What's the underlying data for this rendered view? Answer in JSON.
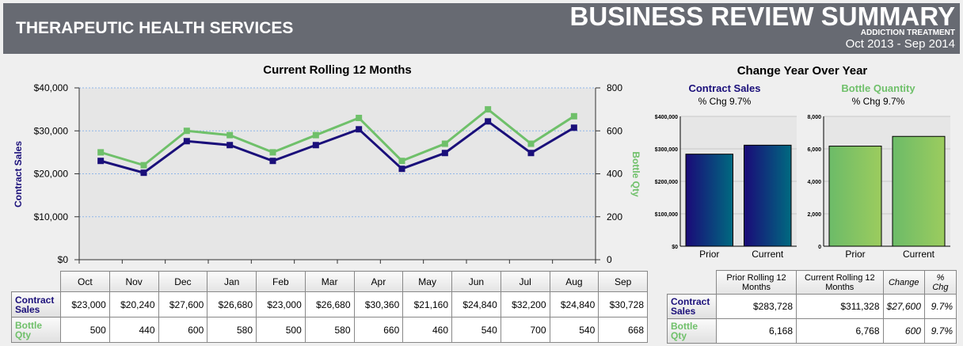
{
  "header": {
    "company": "THERAPEUTIC HEALTH SERVICES",
    "title": "BUSINESS REVIEW SUMMARY",
    "subtitle": "ADDICTION TREATMENT",
    "period": "Oct 2013 - Sep 2014"
  },
  "colors": {
    "sales": "#1a0f7a",
    "bottle": "#6fc06a",
    "header_bg": "#676a72"
  },
  "chart_data": [
    {
      "type": "line",
      "title": "Current Rolling 12 Months",
      "categories": [
        "Oct",
        "Nov",
        "Dec",
        "Jan",
        "Feb",
        "Mar",
        "Apr",
        "May",
        "Jun",
        "Jul",
        "Aug",
        "Sep"
      ],
      "ylabel": "Contract Sales",
      "y2label": "Bottle Qty",
      "ylim": [
        0,
        40000
      ],
      "y2lim": [
        0,
        800
      ],
      "yticks": [
        "$0",
        "$10,000",
        "$20,000",
        "$30,000",
        "$40,000"
      ],
      "y2ticks": [
        "0",
        "200",
        "400",
        "600",
        "800"
      ],
      "grid": true,
      "series": [
        {
          "name": "Contract Sales",
          "axis": "left",
          "values": [
            23000,
            20240,
            27600,
            26680,
            23000,
            26680,
            30360,
            21160,
            24840,
            32200,
            24840,
            30728
          ]
        },
        {
          "name": "Bottle Qty",
          "axis": "right",
          "values": [
            500,
            440,
            600,
            580,
            500,
            580,
            660,
            460,
            540,
            700,
            540,
            668
          ]
        }
      ]
    },
    {
      "type": "bar",
      "title": "Contract Sales",
      "subtitle": "% Chg 9.7%",
      "categories": [
        "Prior",
        "Current"
      ],
      "values": [
        283728,
        311328
      ],
      "ylim": [
        0,
        400000
      ],
      "yticks": [
        "$0",
        "$100,000",
        "$200,000",
        "$300,000",
        "$400,000"
      ]
    },
    {
      "type": "bar",
      "title": "Bottle Quantity",
      "subtitle": "% Chg 9.7%",
      "categories": [
        "Prior",
        "Current"
      ],
      "values": [
        6168,
        6768
      ],
      "ylim": [
        0,
        8000
      ],
      "yticks": [
        "0",
        "2,000",
        "4,000",
        "6,000",
        "8,000"
      ]
    }
  ],
  "yoy_title": "Change Year Over Year",
  "monthly_table": {
    "rows": [
      {
        "label": "Contract Sales",
        "values": [
          "$23,000",
          "$20,240",
          "$27,600",
          "$26,680",
          "$23,000",
          "$26,680",
          "$30,360",
          "$21,160",
          "$24,840",
          "$32,200",
          "$24,840",
          "$30,728"
        ]
      },
      {
        "label": "Bottle Qty",
        "values": [
          "500",
          "440",
          "600",
          "580",
          "500",
          "580",
          "660",
          "460",
          "540",
          "700",
          "540",
          "668"
        ]
      }
    ]
  },
  "yoy_table": {
    "headers": [
      "Prior Rolling 12 Months",
      "Current Rolling 12 Months",
      "Change",
      "% Chg"
    ],
    "rows": [
      {
        "label": "Contract Sales",
        "values": [
          "$283,728",
          "$311,328",
          "$27,600",
          "9.7%"
        ]
      },
      {
        "label": "Bottle Qty",
        "values": [
          "6,168",
          "6,768",
          "600",
          "9.7%"
        ]
      }
    ]
  }
}
